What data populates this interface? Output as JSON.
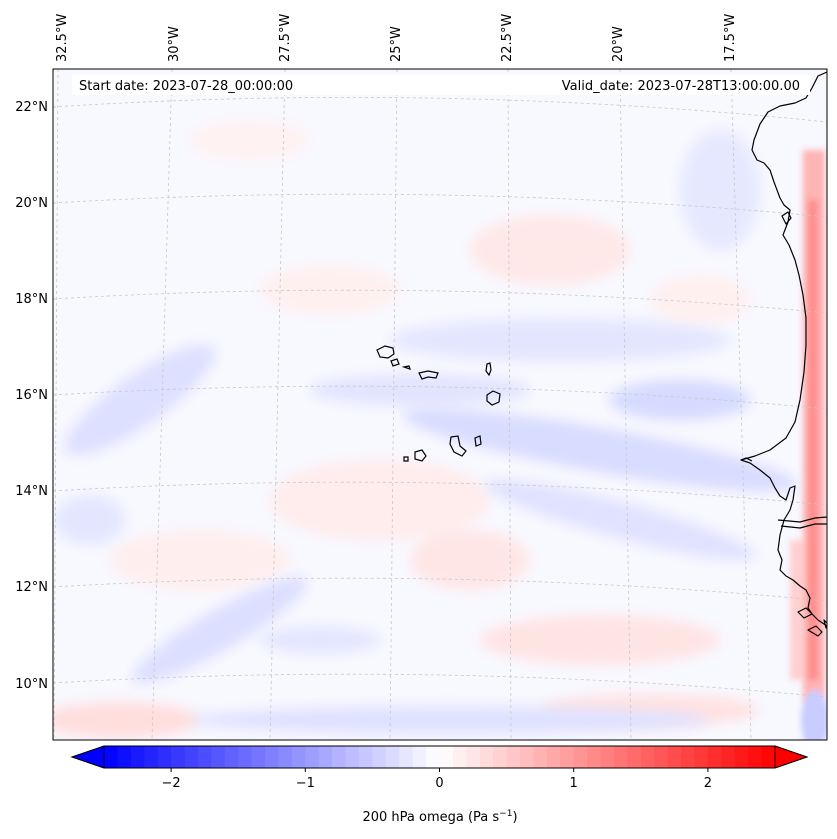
{
  "map": {
    "start_label": "Start date: 2023-07-28_00:00:00",
    "valid_label": "Valid_date: 2023-07-28T13:00:00.00",
    "lon_labels": [
      "32.5°W",
      "30°W",
      "27.5°W",
      "25°W",
      "22.5°W",
      "20°W",
      "17.5°W"
    ],
    "lat_labels": [
      "22°N",
      "20°N",
      "18°N",
      "16°N",
      "14°N",
      "12°N",
      "10°N"
    ],
    "extent": {
      "lon_min": -32.6,
      "lon_max": -15.3,
      "lat_min": 8.9,
      "lat_max": 22.8
    }
  },
  "colorbar": {
    "ticks": [
      "−2",
      "−1",
      "0",
      "1",
      "2"
    ],
    "tick_values": [
      -2,
      -1,
      0,
      1,
      2
    ],
    "vmin": -2.5,
    "vmax": 2.5,
    "label": "200 hPa omega (Pa s",
    "label_sup": "−1",
    "label_close": ")",
    "colors": {
      "negative": "#0000ff",
      "zero": "#ffffff",
      "positive": "#ff0000"
    }
  },
  "colors": {
    "coastline": "#000000",
    "grid": "#c8c8c8",
    "frame": "#000000"
  }
}
